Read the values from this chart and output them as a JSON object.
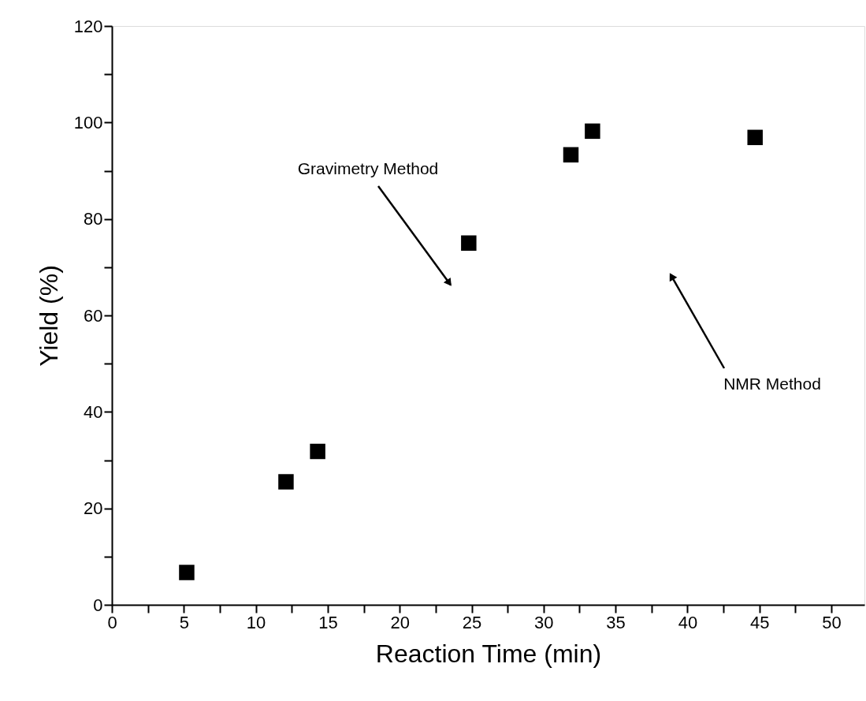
{
  "chart_data": {
    "type": "scatter",
    "xlabel": "Reaction Time (min)",
    "ylabel": "Yield (%)",
    "x": [
      5.2,
      12.1,
      14.3,
      24.8,
      31.9,
      33.4,
      44.7
    ],
    "series": [
      {
        "color": "#000000",
        "values": [
          6.7,
          25.5,
          31.8,
          75.0,
          93.3,
          98.2,
          96.9
        ]
      }
    ],
    "marker": "square",
    "xlim": [
      0,
      52.3
    ],
    "xticks": [
      0,
      {
        "value": 2.5,
        "label": null
      },
      5,
      {
        "value": 7.5,
        "label": null
      },
      10,
      {
        "value": 12.5,
        "label": null
      },
      15,
      {
        "value": 17.5,
        "label": null
      },
      20,
      {
        "value": 22.5,
        "label": null
      },
      25,
      {
        "value": 27.5,
        "label": null
      },
      30,
      {
        "value": 32.5,
        "label": null
      },
      35,
      {
        "value": 37.5,
        "label": null
      },
      40,
      {
        "value": 42.5,
        "label": null
      },
      45,
      {
        "value": 47.5,
        "label": null
      },
      50
    ],
    "ylim": [
      0,
      120
    ],
    "yticks": [
      0,
      {
        "value": 10,
        "label": null
      },
      20,
      {
        "value": 30,
        "label": null
      },
      40,
      {
        "value": 50,
        "label": null
      },
      60,
      {
        "value": 70,
        "label": null
      },
      80,
      {
        "value": 90,
        "label": null
      },
      100,
      {
        "value": 110,
        "label": null
      },
      120
    ],
    "annotations": [
      "Gravimetry Method",
      "NMR Method"
    ],
    "grid": false
  }
}
